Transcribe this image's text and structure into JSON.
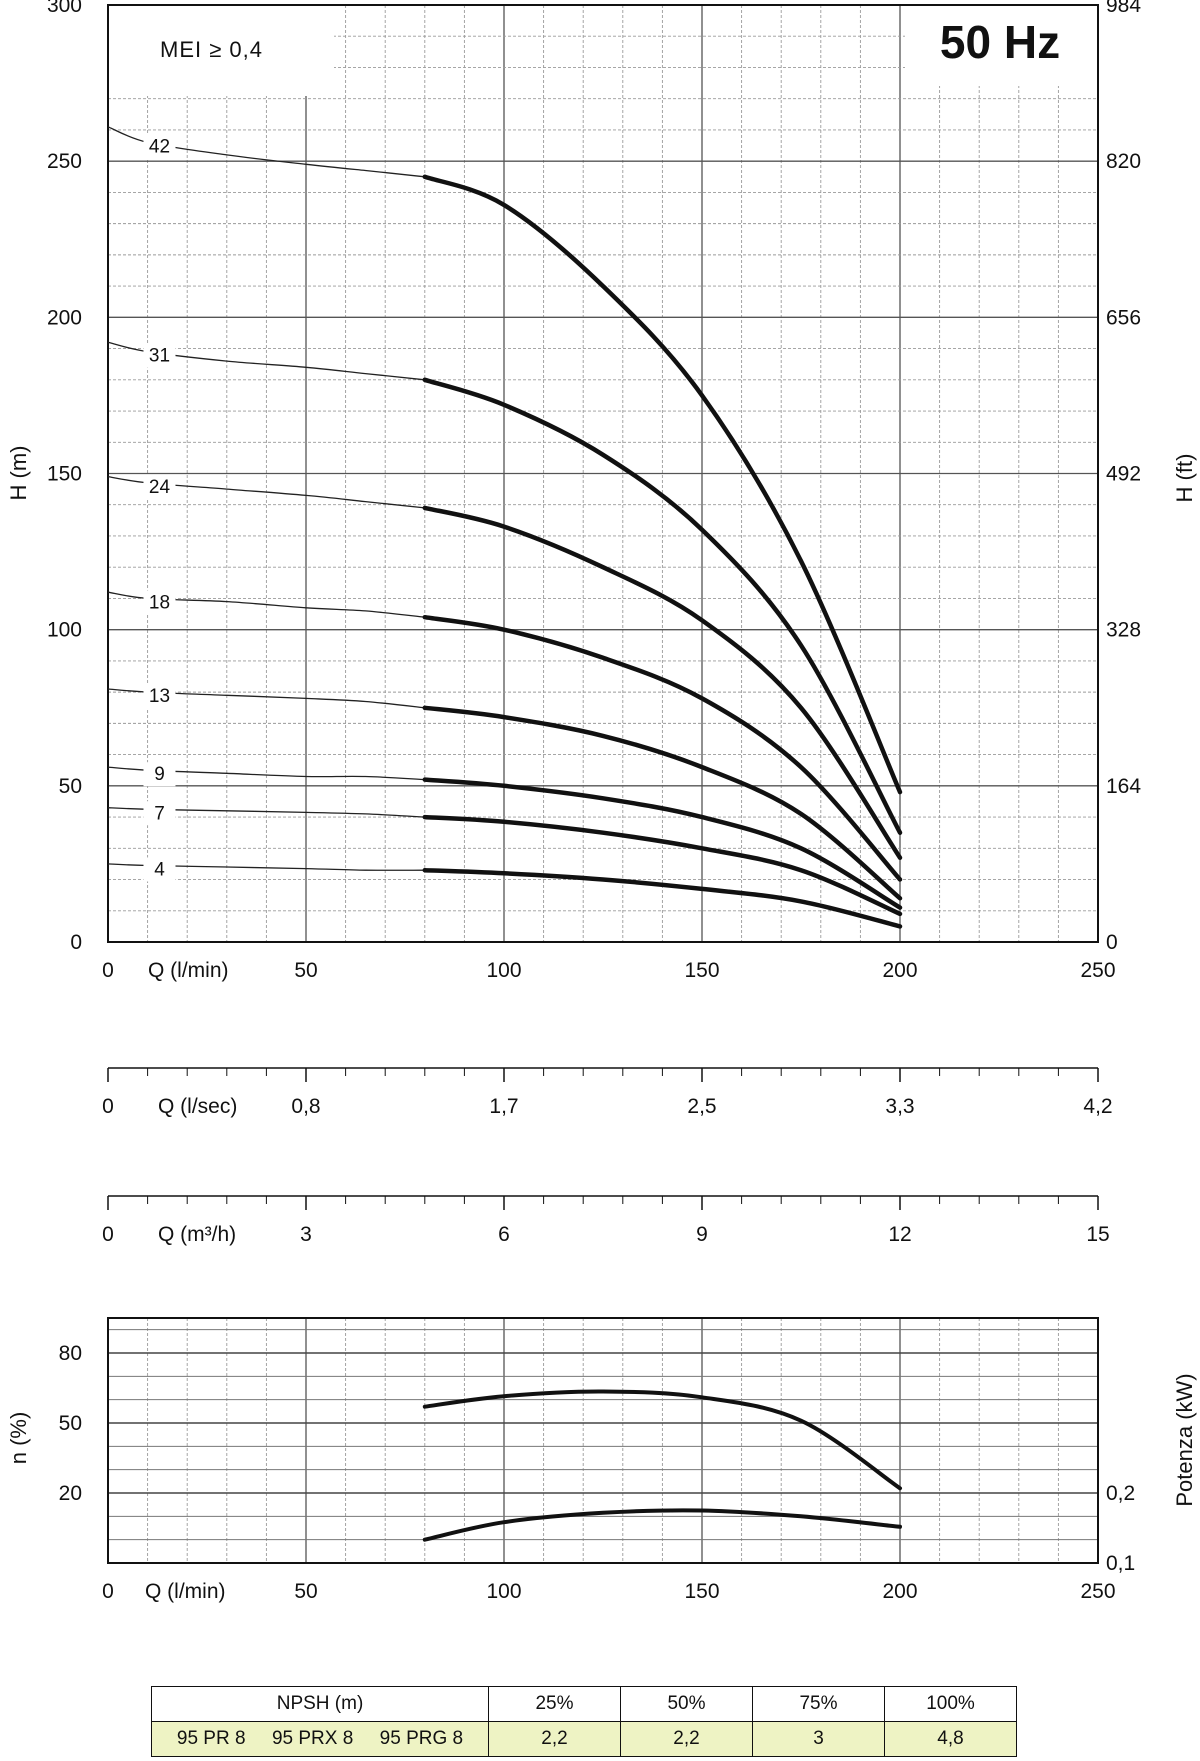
{
  "chart_data": [
    {
      "type": "line",
      "title": "50 Hz",
      "annotation": "MEI ≥ 0,4",
      "xlabel": "Q (l/min)",
      "ylabel": "H (m)",
      "ylabel_right": "H (ft)",
      "xlim": [
        0,
        250
      ],
      "ylim": [
        0,
        300
      ],
      "x_ticks": [
        "0",
        "50",
        "100",
        "150",
        "200",
        "250"
      ],
      "y_ticks": [
        "0",
        "50",
        "100",
        "150",
        "200",
        "250",
        "300"
      ],
      "y_ticks_right": [
        "0",
        "164",
        "328",
        "492",
        "656",
        "820",
        "984"
      ],
      "grid": true,
      "series": [
        {
          "name": "42",
          "x": [
            0,
            10,
            30,
            50,
            65,
            80,
            100,
            125,
            150,
            175,
            200
          ],
          "y": [
            261,
            256,
            252,
            249,
            247,
            245,
            236,
            210,
            175,
            122,
            48
          ]
        },
        {
          "name": "31",
          "x": [
            0,
            10,
            30,
            50,
            65,
            80,
            100,
            125,
            150,
            175,
            200
          ],
          "y": [
            192,
            189,
            186,
            184,
            182,
            180,
            172,
            156,
            132,
            95,
            35
          ]
        },
        {
          "name": "24",
          "x": [
            0,
            10,
            30,
            50,
            65,
            80,
            100,
            125,
            150,
            175,
            200
          ],
          "y": [
            149,
            147,
            145,
            143,
            141,
            139,
            133,
            120,
            103,
            75,
            27
          ]
        },
        {
          "name": "18",
          "x": [
            0,
            10,
            30,
            50,
            65,
            80,
            100,
            125,
            150,
            175,
            200
          ],
          "y": [
            112,
            110,
            109,
            107,
            106,
            104,
            100,
            91,
            78,
            56,
            20
          ]
        },
        {
          "name": "13",
          "x": [
            0,
            10,
            30,
            50,
            65,
            80,
            100,
            125,
            150,
            175,
            200
          ],
          "y": [
            81,
            80,
            79,
            78,
            77,
            75,
            72,
            66,
            56,
            41,
            14
          ]
        },
        {
          "name": "9",
          "x": [
            0,
            10,
            30,
            50,
            65,
            80,
            100,
            125,
            150,
            175,
            200
          ],
          "y": [
            56,
            55,
            54,
            53,
            53,
            52,
            50,
            46,
            40,
            30,
            11
          ]
        },
        {
          "name": "7",
          "x": [
            0,
            10,
            30,
            50,
            65,
            80,
            100,
            125,
            150,
            175,
            200
          ],
          "y": [
            43,
            42.5,
            42,
            41.5,
            41,
            40,
            38.5,
            35,
            30,
            23,
            9
          ]
        },
        {
          "name": "4",
          "x": [
            0,
            10,
            30,
            50,
            65,
            80,
            100,
            125,
            150,
            175,
            200
          ],
          "y": [
            25,
            24.5,
            24,
            23.5,
            23,
            23,
            22,
            20,
            17,
            13,
            5
          ]
        }
      ]
    },
    {
      "type": "axis",
      "xlabel": "Q (l/sec)",
      "xlim": [
        0,
        4.2
      ],
      "ticks": [
        "0",
        "0,8",
        "1,7",
        "2,5",
        "3,3",
        "4,2"
      ]
    },
    {
      "type": "axis",
      "xlabel": "Q (m³/h)",
      "xlim": [
        0,
        15
      ],
      "ticks": [
        "0",
        "3",
        "6",
        "9",
        "12",
        "15"
      ]
    },
    {
      "type": "line",
      "xlabel": "Q (l/min)",
      "ylabel": "n (%)",
      "ylabel_right": "Potenza (kW)",
      "xlim": [
        0,
        250
      ],
      "ylim": [
        -10,
        95
      ],
      "x_ticks": [
        "0",
        "50",
        "100",
        "150",
        "200",
        "250"
      ],
      "y_ticks": [
        "20",
        "50",
        "80"
      ],
      "y_ticks_right": [
        "0,1",
        "0,2"
      ],
      "grid": true,
      "series": [
        {
          "x": [
            80,
            100,
            125,
            150,
            175,
            200
          ],
          "y": [
            57,
            61.5,
            63.5,
            61,
            51,
            22
          ]
        },
        {
          "x": [
            80,
            100,
            125,
            150,
            175,
            200
          ],
          "y": [
            0,
            7.5,
            11.5,
            12.5,
            10,
            5.5
          ]
        }
      ]
    },
    {
      "type": "table",
      "columns": [
        "NPSH (m)",
        "25%",
        "50%",
        "75%",
        "100%"
      ],
      "rows": [
        {
          "models": [
            "95 PR 8",
            "95 PRX 8",
            "95 PRG 8"
          ],
          "values": [
            "2,2",
            "2,2",
            "3",
            "4,8"
          ]
        }
      ]
    }
  ]
}
